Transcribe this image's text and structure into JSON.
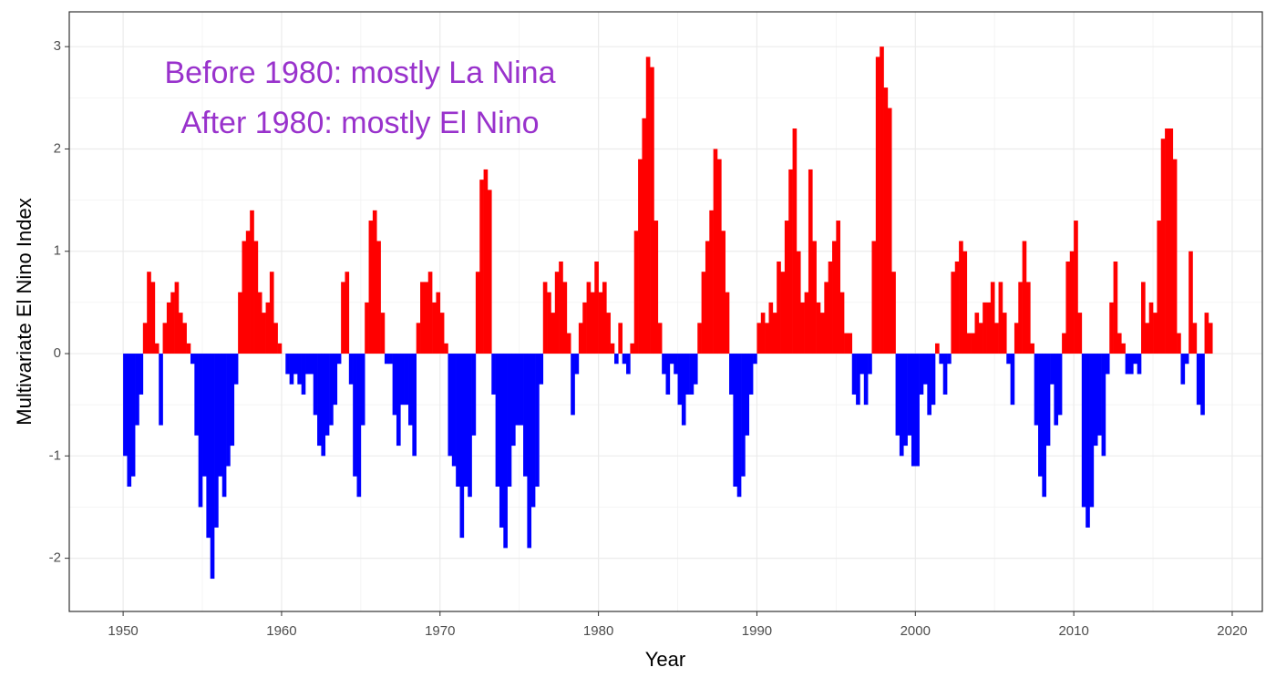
{
  "chart_data": {
    "type": "bar",
    "x_label": "Year",
    "y_label": "Multivariate El Nino Index",
    "annotation": [
      "Before 1980: mostly La Nina",
      "After 1980: mostly El Nino"
    ],
    "annotation_color": "#9932cc",
    "positive_color": "#ff0000",
    "negative_color": "#0000ff",
    "grid": true,
    "xlim": [
      1946.6,
      2021.9
    ],
    "ylim": [
      -2.52,
      3.34
    ],
    "xticks": [
      1950,
      1960,
      1970,
      1980,
      1990,
      2000,
      2010,
      2020
    ],
    "yticks": [
      -2,
      -1,
      0,
      1,
      2,
      3
    ],
    "x_minor_ticks": [
      1955,
      1965,
      1975,
      1985,
      1995,
      2005,
      2015
    ],
    "y_minor_ticks": [
      -1.5,
      -0.5,
      0.5,
      1.5,
      2.5
    ],
    "x": [
      1950,
      1950.25,
      1950.5,
      1950.75,
      1951,
      1951.25,
      1951.5,
      1951.75,
      1952,
      1952.25,
      1952.5,
      1952.75,
      1953,
      1953.25,
      1953.5,
      1953.75,
      1954,
      1954.25,
      1954.5,
      1954.75,
      1955,
      1955.25,
      1955.5,
      1955.75,
      1956,
      1956.25,
      1956.5,
      1956.75,
      1957,
      1957.25,
      1957.5,
      1957.75,
      1958,
      1958.25,
      1958.5,
      1958.75,
      1959,
      1959.25,
      1959.5,
      1959.75,
      1960,
      1960.25,
      1960.5,
      1960.75,
      1961,
      1961.25,
      1961.5,
      1961.75,
      1962,
      1962.25,
      1962.5,
      1962.75,
      1963,
      1963.25,
      1963.5,
      1963.75,
      1964,
      1964.25,
      1964.5,
      1964.75,
      1965,
      1965.25,
      1965.5,
      1965.75,
      1966,
      1966.25,
      1966.5,
      1966.75,
      1967,
      1967.25,
      1967.5,
      1967.75,
      1968,
      1968.25,
      1968.5,
      1968.75,
      1969,
      1969.25,
      1969.5,
      1969.75,
      1970,
      1970.25,
      1970.5,
      1970.75,
      1971,
      1971.25,
      1971.5,
      1971.75,
      1972,
      1972.25,
      1972.5,
      1972.75,
      1973,
      1973.25,
      1973.5,
      1973.75,
      1974,
      1974.25,
      1974.5,
      1974.75,
      1975,
      1975.25,
      1975.5,
      1975.75,
      1976,
      1976.25,
      1976.5,
      1976.75,
      1977,
      1977.25,
      1977.5,
      1977.75,
      1978,
      1978.25,
      1978.5,
      1978.75,
      1979,
      1979.25,
      1979.5,
      1979.75,
      1980,
      1980.25,
      1980.5,
      1980.75,
      1981,
      1981.25,
      1981.5,
      1981.75,
      1982,
      1982.25,
      1982.5,
      1982.75,
      1983,
      1983.25,
      1983.5,
      1983.75,
      1984,
      1984.25,
      1984.5,
      1984.75,
      1985,
      1985.25,
      1985.5,
      1985.75,
      1986,
      1986.25,
      1986.5,
      1986.75,
      1987,
      1987.25,
      1987.5,
      1987.75,
      1988,
      1988.25,
      1988.5,
      1988.75,
      1989,
      1989.25,
      1989.5,
      1989.75,
      1990,
      1990.25,
      1990.5,
      1990.75,
      1991,
      1991.25,
      1991.5,
      1991.75,
      1992,
      1992.25,
      1992.5,
      1992.75,
      1993,
      1993.25,
      1993.5,
      1993.75,
      1994,
      1994.25,
      1994.5,
      1994.75,
      1995,
      1995.25,
      1995.5,
      1995.75,
      1996,
      1996.25,
      1996.5,
      1996.75,
      1997,
      1997.25,
      1997.5,
      1997.75,
      1998,
      1998.25,
      1998.5,
      1998.75,
      1999,
      1999.25,
      1999.5,
      1999.75,
      2000,
      2000.25,
      2000.5,
      2000.75,
      2001,
      2001.25,
      2001.5,
      2001.75,
      2002,
      2002.25,
      2002.5,
      2002.75,
      2003,
      2003.25,
      2003.5,
      2003.75,
      2004,
      2004.25,
      2004.5,
      2004.75,
      2005,
      2005.25,
      2005.5,
      2005.75,
      2006,
      2006.25,
      2006.5,
      2006.75,
      2007,
      2007.25,
      2007.5,
      2007.75,
      2008,
      2008.25,
      2008.5,
      2008.75,
      2009,
      2009.25,
      2009.5,
      2009.75,
      2010,
      2010.25,
      2010.5,
      2010.75,
      2011,
      2011.25,
      2011.5,
      2011.75,
      2012,
      2012.25,
      2012.5,
      2012.75,
      2013,
      2013.25,
      2013.5,
      2013.75,
      2014,
      2014.25,
      2014.5,
      2014.75,
      2015,
      2015.25,
      2015.5,
      2015.75,
      2016,
      2016.25,
      2016.5,
      2016.75,
      2017,
      2017.25,
      2017.5,
      2017.75,
      2018,
      2018.25,
      2018.5
    ],
    "values": [
      -1.0,
      -1.3,
      -1.2,
      -0.7,
      -0.4,
      0.3,
      0.8,
      0.7,
      0.1,
      -0.7,
      0.3,
      0.5,
      0.6,
      0.7,
      0.4,
      0.3,
      0.1,
      -0.1,
      -0.8,
      -1.5,
      -1.2,
      -1.8,
      -2.2,
      -1.7,
      -1.2,
      -1.4,
      -1.1,
      -0.9,
      -0.3,
      0.6,
      1.1,
      1.2,
      1.4,
      1.1,
      0.6,
      0.4,
      0.5,
      0.8,
      0.3,
      0.1,
      0.0,
      -0.2,
      -0.3,
      -0.2,
      -0.3,
      -0.4,
      -0.2,
      -0.2,
      -0.6,
      -0.9,
      -1.0,
      -0.8,
      -0.7,
      -0.5,
      -0.1,
      0.7,
      0.8,
      -0.3,
      -1.2,
      -1.4,
      -0.7,
      0.5,
      1.3,
      1.4,
      1.1,
      0.4,
      -0.1,
      -0.1,
      -0.6,
      -0.9,
      -0.5,
      -0.5,
      -0.7,
      -1.0,
      0.3,
      0.7,
      0.7,
      0.8,
      0.5,
      0.6,
      0.4,
      0.1,
      -1.0,
      -1.1,
      -1.3,
      -1.8,
      -1.3,
      -1.4,
      -0.8,
      0.8,
      1.7,
      1.8,
      1.6,
      -0.4,
      -1.3,
      -1.7,
      -1.9,
      -1.3,
      -0.9,
      -0.7,
      -0.7,
      -1.2,
      -1.9,
      -1.5,
      -1.3,
      -0.3,
      0.7,
      0.6,
      0.4,
      0.8,
      0.9,
      0.7,
      0.2,
      -0.6,
      -0.2,
      0.3,
      0.5,
      0.7,
      0.6,
      0.9,
      0.6,
      0.7,
      0.4,
      0.1,
      -0.1,
      0.3,
      -0.1,
      -0.2,
      0.1,
      1.2,
      1.9,
      2.3,
      2.9,
      2.8,
      1.3,
      0.3,
      -0.2,
      -0.4,
      -0.1,
      -0.2,
      -0.5,
      -0.7,
      -0.4,
      -0.4,
      -0.3,
      0.3,
      0.8,
      1.1,
      1.4,
      2.0,
      1.9,
      1.2,
      0.6,
      -0.4,
      -1.3,
      -1.4,
      -1.2,
      -0.8,
      -0.4,
      -0.1,
      0.3,
      0.4,
      0.3,
      0.5,
      0.4,
      0.9,
      0.8,
      1.3,
      1.8,
      2.2,
      1.0,
      0.5,
      0.6,
      1.8,
      1.1,
      0.5,
      0.4,
      0.7,
      0.9,
      1.1,
      1.3,
      0.6,
      0.2,
      0.2,
      -0.4,
      -0.5,
      -0.2,
      -0.5,
      -0.2,
      1.1,
      2.9,
      3.0,
      2.6,
      2.4,
      0.8,
      -0.8,
      -1.0,
      -0.9,
      -0.8,
      -1.1,
      -1.1,
      -0.4,
      -0.3,
      -0.6,
      -0.5,
      0.1,
      -0.1,
      -0.4,
      -0.1,
      0.8,
      0.9,
      1.1,
      1.0,
      0.2,
      0.2,
      0.4,
      0.3,
      0.5,
      0.5,
      0.7,
      0.3,
      0.7,
      0.4,
      -0.1,
      -0.5,
      0.3,
      0.7,
      1.1,
      0.7,
      0.1,
      -0.7,
      -1.2,
      -1.4,
      -0.9,
      -0.3,
      -0.7,
      -0.6,
      0.2,
      0.9,
      1.0,
      1.3,
      0.4,
      -1.5,
      -1.7,
      -1.5,
      -0.9,
      -0.8,
      -1.0,
      -0.2,
      0.5,
      0.9,
      0.2,
      0.1,
      -0.2,
      -0.2,
      -0.1,
      -0.2,
      0.7,
      0.3,
      0.5,
      0.4,
      1.3,
      2.1,
      2.2,
      2.2,
      1.9,
      0.2,
      -0.3,
      -0.1,
      1.0,
      0.3,
      -0.5,
      -0.6,
      0.4,
      0.3
    ]
  }
}
